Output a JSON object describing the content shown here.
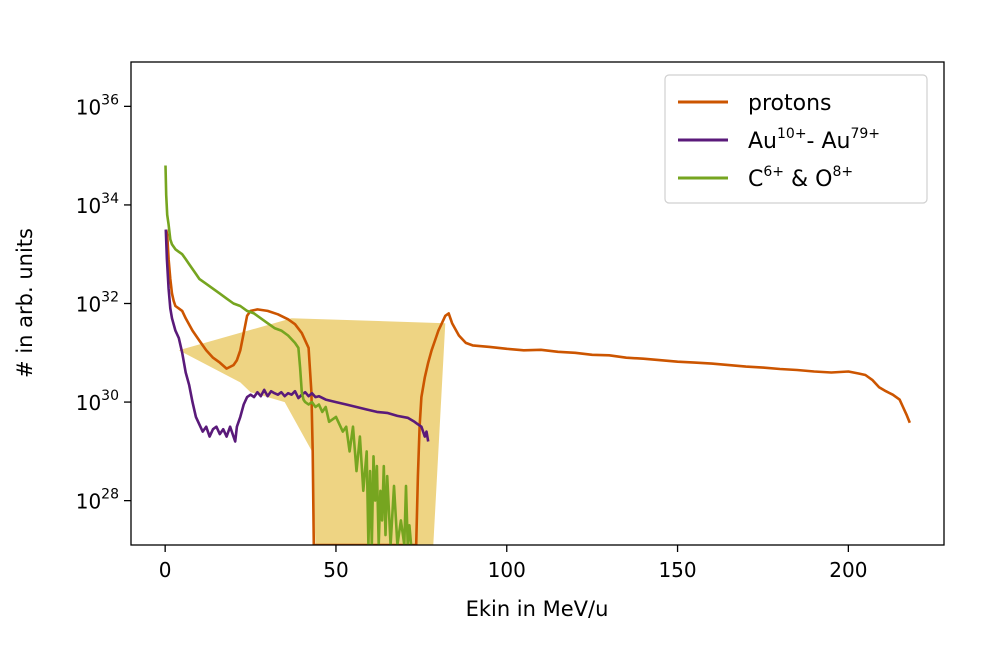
{
  "chart_data": {
    "type": "line",
    "xlabel": "Ekin in MeV/u",
    "ylabel": "# in arb. units",
    "xlim": [
      -10,
      228
    ],
    "ylim_log10": [
      27.1,
      36.9
    ],
    "yscale": "log",
    "grid": false,
    "legend_position": "top-right",
    "x_ticks": [
      0,
      50,
      100,
      150,
      200
    ],
    "y_ticks": [
      {
        "exp": 28,
        "base": "10",
        "power": "28"
      },
      {
        "exp": 30,
        "base": "10",
        "power": "30"
      },
      {
        "exp": 32,
        "base": "10",
        "power": "32"
      },
      {
        "exp": 34,
        "base": "10",
        "power": "34"
      },
      {
        "exp": 36,
        "base": "10",
        "power": "36"
      }
    ],
    "legend": [
      {
        "series": 0,
        "label": [
          {
            "t": "protons"
          }
        ]
      },
      {
        "series": 1,
        "label": [
          {
            "t": "Au"
          },
          {
            "t": "10+",
            "sup": true
          },
          {
            "t": "- Au"
          },
          {
            "t": "79+",
            "sup": true
          }
        ]
      },
      {
        "series": 2,
        "label": [
          {
            "t": "C"
          },
          {
            "t": "6+",
            "sup": true
          },
          {
            "t": " & O"
          },
          {
            "t": "8+",
            "sup": true
          }
        ]
      }
    ],
    "series": [
      {
        "color": "#cc5500",
        "x": [
          0.3,
          0.6,
          1,
          1.5,
          2,
          2.5,
          3,
          4,
          5,
          6,
          8,
          10,
          12,
          14,
          16,
          18,
          20,
          21,
          22,
          23,
          24,
          25,
          27,
          30,
          33,
          36,
          38,
          40,
          42,
          42.8,
          43.2,
          43.5,
          73.5,
          74,
          74.5,
          75,
          76,
          77,
          78,
          79,
          80,
          81,
          82,
          83,
          84,
          86,
          88,
          90,
          95,
          100,
          105,
          110,
          115,
          120,
          125,
          130,
          135,
          140,
          145,
          150,
          155,
          160,
          165,
          170,
          175,
          180,
          185,
          190,
          195,
          200,
          203,
          205,
          207,
          209,
          211,
          213,
          215,
          216,
          217,
          218
        ],
        "y_log10": [
          33.5,
          33.4,
          32.9,
          32.5,
          32.2,
          32.05,
          31.95,
          31.9,
          31.85,
          31.7,
          31.45,
          31.25,
          31.05,
          30.9,
          30.8,
          30.68,
          30.75,
          30.85,
          31.05,
          31.4,
          31.75,
          31.85,
          31.88,
          31.85,
          31.78,
          31.68,
          31.58,
          31.4,
          31.1,
          30.2,
          29,
          27.1,
          27.1,
          28.5,
          29.5,
          30.1,
          30.5,
          30.8,
          31.05,
          31.25,
          31.45,
          31.6,
          31.75,
          31.8,
          31.6,
          31.35,
          31.2,
          31.15,
          31.12,
          31.08,
          31.05,
          31.06,
          31.02,
          31.0,
          30.96,
          30.95,
          30.9,
          30.88,
          30.85,
          30.82,
          30.8,
          30.78,
          30.75,
          30.72,
          30.7,
          30.67,
          30.65,
          30.62,
          30.6,
          30.62,
          30.58,
          30.55,
          30.45,
          30.3,
          30.22,
          30.15,
          30.05,
          29.9,
          29.75,
          29.58
        ]
      },
      {
        "color": "#5a1a7a",
        "x": [
          0.2,
          0.5,
          1,
          1.5,
          2,
          3,
          4,
          5,
          6,
          7,
          8,
          9,
          10,
          11,
          12,
          13,
          14,
          15,
          16,
          17,
          18,
          19,
          20,
          20.5,
          21,
          22,
          23,
          24,
          25,
          26,
          27,
          28,
          29,
          30,
          31,
          32,
          33,
          34,
          35,
          36,
          37,
          38,
          39,
          40,
          41,
          42,
          43,
          44,
          45,
          47,
          50,
          53,
          56,
          59,
          62,
          65,
          68,
          71,
          73,
          74,
          75,
          76,
          76.5,
          77
        ],
        "y_log10": [
          33.5,
          32.9,
          32.3,
          31.9,
          31.7,
          31.45,
          31.3,
          31.0,
          30.6,
          30.35,
          30.0,
          29.7,
          29.55,
          29.4,
          29.5,
          29.3,
          29.45,
          29.5,
          29.35,
          29.45,
          29.3,
          29.5,
          29.3,
          29.2,
          29.5,
          29.7,
          29.95,
          30.1,
          30.15,
          30.1,
          30.2,
          30.12,
          30.25,
          30.12,
          30.22,
          30.18,
          30.15,
          30.2,
          30.12,
          30.18,
          30.15,
          30.22,
          30.08,
          30.15,
          30.2,
          30.12,
          30.18,
          30.1,
          30.12,
          30.05,
          30.0,
          29.95,
          29.9,
          29.85,
          29.8,
          29.78,
          29.72,
          29.68,
          29.6,
          29.55,
          29.5,
          29.3,
          29.4,
          29.2
        ]
      },
      {
        "color": "#76a520",
        "x": [
          0.1,
          0.3,
          0.6,
          1,
          1.5,
          2,
          3,
          4,
          5,
          6,
          7,
          8,
          9,
          10,
          12,
          14,
          16,
          18,
          20,
          22,
          24,
          26,
          28,
          30,
          32,
          34,
          36,
          38,
          39,
          39.5,
          40,
          40.5,
          41,
          42,
          43,
          44,
          45,
          46,
          47,
          48,
          50,
          52,
          53,
          54,
          55,
          56,
          57,
          58,
          59,
          59.5,
          60,
          60.5,
          61,
          61.5,
          62,
          62.5,
          63,
          63.5,
          64,
          64.5,
          65,
          66,
          67,
          68,
          69,
          70,
          70.5,
          71,
          71.5,
          72
        ],
        "y_log10": [
          34.8,
          34.2,
          33.8,
          33.6,
          33.3,
          33.2,
          33.1,
          33.05,
          33.0,
          32.9,
          32.8,
          32.7,
          32.6,
          32.5,
          32.4,
          32.3,
          32.2,
          32.1,
          32.0,
          31.95,
          31.85,
          31.8,
          31.7,
          31.6,
          31.5,
          31.45,
          31.35,
          31.2,
          31.1,
          30.7,
          30.2,
          30.05,
          30.0,
          29.95,
          30.0,
          29.9,
          29.95,
          29.8,
          29.9,
          29.6,
          29.7,
          29.4,
          29.5,
          29.0,
          29.5,
          28.6,
          29.3,
          28.2,
          29.0,
          27.1,
          28.6,
          27.1,
          28.9,
          28.0,
          28.7,
          27.1,
          28.2,
          27.6,
          28.7,
          27.3,
          28.5,
          27.1,
          28.3,
          27.1,
          27.6,
          27.1,
          28.3,
          27.1,
          27.5,
          27.1
        ]
      }
    ],
    "fill_band": {
      "color": "#e8c55a",
      "polygon": [
        [
          4,
          31.05
        ],
        [
          37,
          31.7
        ],
        [
          82,
          31.6
        ],
        [
          78.5,
          27.1
        ],
        [
          60,
          27.1
        ],
        [
          44,
          27.1
        ],
        [
          43,
          29.0
        ],
        [
          35,
          30.0
        ],
        [
          25,
          30.2
        ],
        [
          22,
          30.4
        ],
        [
          4,
          31.05
        ]
      ]
    }
  }
}
